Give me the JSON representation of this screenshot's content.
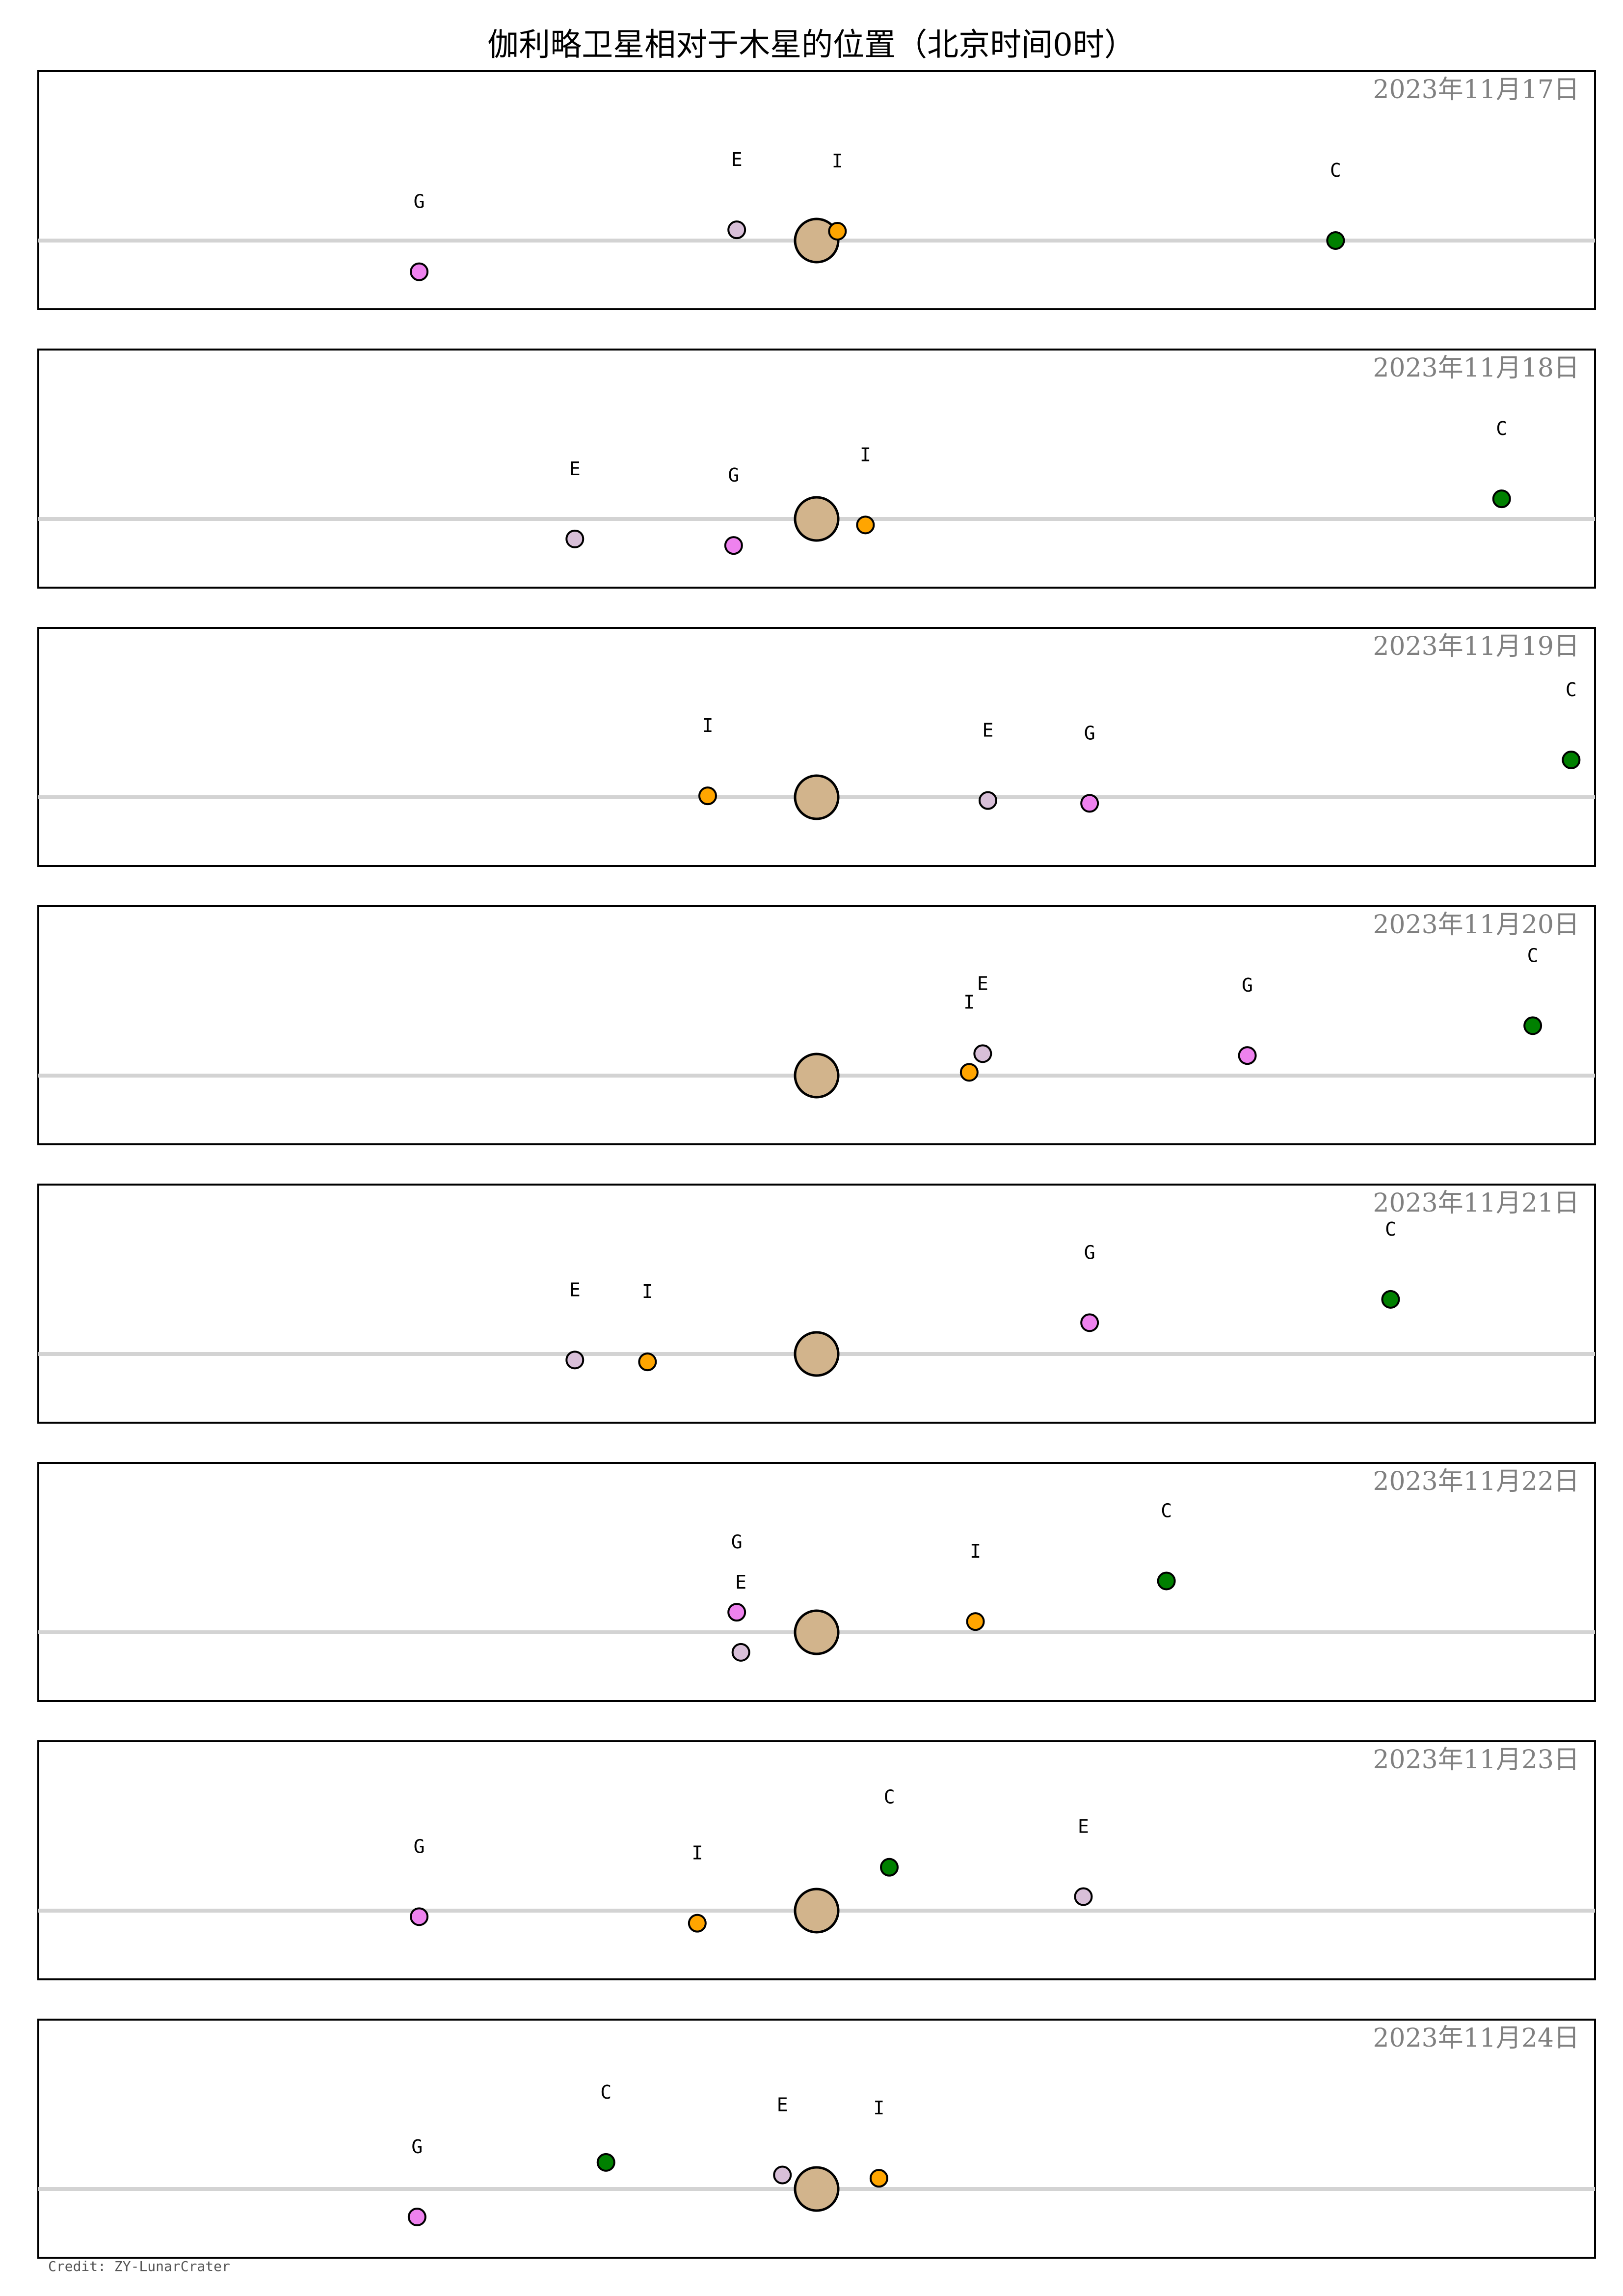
{
  "title": "伽利略卫星相对于木星的位置（北京时间0时）",
  "credit": "Credit: ZY-LunarCrater",
  "colors": {
    "jupiter": "#d2b48c",
    "I": "#ffa500",
    "E": "#d8bfd8",
    "G": "#ee82ee",
    "C": "#008000",
    "baseline": "#d3d3d3",
    "date_text": "#808080"
  },
  "chart_data": {
    "type": "scatter",
    "x_axis": "east-west offset from Jupiter",
    "y_axis": "north-south offset from Jupiter",
    "xlim": [
      -7.5,
      7.5
    ],
    "ylim": [
      -1.4,
      2.6
    ],
    "moons": [
      "I",
      "E",
      "G",
      "C"
    ],
    "panels": [
      {
        "date": "2023年11月17日",
        "I": [
          0.2,
          0.2
        ],
        "E": [
          -0.77,
          0.23
        ],
        "G": [
          -3.83,
          -0.67
        ],
        "C": [
          5.0,
          0.0
        ]
      },
      {
        "date": "2023年11月18日",
        "I": [
          0.47,
          -0.13
        ],
        "E": [
          -2.33,
          -0.43
        ],
        "G": [
          -0.8,
          -0.57
        ],
        "C": [
          6.6,
          0.43
        ]
      },
      {
        "date": "2023年11月19日",
        "I": [
          -1.05,
          0.03
        ],
        "E": [
          1.65,
          -0.07
        ],
        "G": [
          2.63,
          -0.13
        ],
        "C": [
          7.27,
          0.8
        ]
      },
      {
        "date": "2023年11月20日",
        "I": [
          1.47,
          0.07
        ],
        "E": [
          1.6,
          0.47
        ],
        "G": [
          4.15,
          0.43
        ],
        "C": [
          6.9,
          1.07
        ]
      },
      {
        "date": "2023年11月21日",
        "I": [
          -1.63,
          -0.17
        ],
        "E": [
          -2.33,
          -0.13
        ],
        "G": [
          2.63,
          0.67
        ],
        "C": [
          5.53,
          1.17
        ]
      },
      {
        "date": "2023年11月22日",
        "I": [
          1.53,
          0.23
        ],
        "E": [
          -0.73,
          -0.43
        ],
        "G": [
          -0.77,
          0.43
        ],
        "C": [
          3.37,
          1.1
        ]
      },
      {
        "date": "2023年11月23日",
        "I": [
          -1.15,
          -0.27
        ],
        "E": [
          2.57,
          0.3
        ],
        "G": [
          -3.83,
          -0.13
        ],
        "C": [
          0.7,
          0.93
        ]
      },
      {
        "date": "2023年11月24日",
        "I": [
          0.6,
          0.23
        ],
        "E": [
          -0.33,
          0.3
        ],
        "G": [
          -3.85,
          -0.6
        ],
        "C": [
          -2.03,
          0.57
        ]
      }
    ]
  }
}
